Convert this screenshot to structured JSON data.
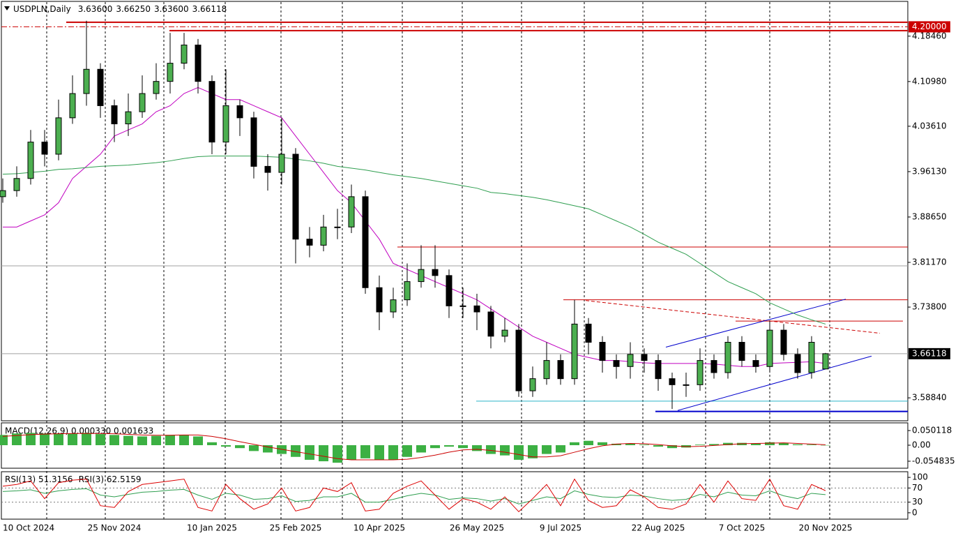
{
  "chart_data": {
    "type": "candlestick",
    "title": "USDPLN,Daily",
    "header_values": [
      {
        "value": 3.636,
        "label": "3.63600"
      },
      {
        "value": 3.6625,
        "label": "3.66250"
      },
      {
        "value": 3.636,
        "label": "3.63600"
      },
      {
        "value": 3.66118,
        "label": "3.66118"
      }
    ],
    "categories": [
      "10 Oct 2024",
      null,
      null,
      null,
      null,
      null,
      null,
      null,
      "25 Nov 2024",
      null,
      null,
      null,
      null,
      null,
      null,
      "10 Jan 2025",
      null,
      null,
      null,
      null,
      null,
      "25 Feb 2025",
      null,
      null,
      null,
      null,
      null,
      "10 Apr 2025",
      null,
      null,
      null,
      null,
      null,
      null,
      "26 May 2025",
      null,
      null,
      null,
      null,
      null,
      "9 Jul 2025",
      null,
      null,
      null,
      null,
      null,
      null,
      "22 Aug 2025",
      null,
      null,
      null,
      null,
      null,
      "7 Oct 2025",
      null,
      null,
      null,
      null,
      null,
      "20 Nov 2025"
    ],
    "open": [
      3.92,
      3.93,
      3.95,
      4.01,
      3.99,
      4.05,
      4.09,
      4.13,
      4.07,
      4.04,
      4.06,
      4.09,
      4.11,
      4.14,
      4.17,
      4.11,
      4.01,
      4.07,
      4.05,
      3.97,
      3.96,
      3.99,
      3.85,
      3.84,
      3.87,
      3.87,
      3.92,
      3.77,
      3.73,
      3.75,
      3.78,
      3.8,
      3.79,
      3.74,
      3.74,
      3.73,
      3.69,
      3.7,
      3.6,
      3.62,
      3.65,
      3.62,
      3.71,
      3.68,
      3.65,
      3.64,
      3.66,
      3.65,
      3.62,
      3.61,
      3.61,
      3.65,
      3.63,
      3.68,
      3.65,
      3.64,
      3.7,
      3.66,
      3.63,
      3.636
    ],
    "high": [
      3.95,
      3.97,
      4.03,
      4.03,
      4.08,
      4.12,
      4.21,
      4.14,
      4.08,
      4.09,
      4.12,
      4.14,
      4.19,
      4.19,
      4.18,
      4.12,
      4.13,
      4.08,
      4.06,
      3.99,
      4.05,
      4.0,
      3.87,
      3.89,
      3.9,
      3.94,
      3.93,
      3.79,
      3.77,
      3.81,
      3.84,
      3.84,
      3.8,
      3.77,
      3.76,
      3.74,
      3.72,
      3.71,
      3.64,
      3.68,
      3.66,
      3.75,
      3.72,
      3.69,
      3.66,
      3.68,
      3.67,
      3.66,
      3.63,
      3.63,
      3.67,
      3.66,
      3.69,
      3.69,
      3.66,
      3.715,
      3.71,
      3.67,
      3.69,
      3.6625
    ],
    "low": [
      3.91,
      3.92,
      3.94,
      3.97,
      3.98,
      4.04,
      4.07,
      4.05,
      4.01,
      4.02,
      4.05,
      4.08,
      4.09,
      4.13,
      4.09,
      3.99,
      3.99,
      4.02,
      3.95,
      3.93,
      3.94,
      3.81,
      3.82,
      3.83,
      3.85,
      3.86,
      3.76,
      3.7,
      3.72,
      3.74,
      3.77,
      3.77,
      3.72,
      3.72,
      3.7,
      3.67,
      3.68,
      3.59,
      3.59,
      3.61,
      3.61,
      3.61,
      3.66,
      3.63,
      3.62,
      3.62,
      3.63,
      3.6,
      3.57,
      3.59,
      3.6,
      3.62,
      3.62,
      3.64,
      3.63,
      3.63,
      3.65,
      3.62,
      3.62,
      3.636
    ],
    "close": [
      3.93,
      3.95,
      4.01,
      3.99,
      4.05,
      4.09,
      4.13,
      4.07,
      4.04,
      4.06,
      4.09,
      4.11,
      4.14,
      4.17,
      4.11,
      4.01,
      4.07,
      4.05,
      3.97,
      3.96,
      3.99,
      3.85,
      3.84,
      3.87,
      3.87,
      3.92,
      3.77,
      3.73,
      3.75,
      3.78,
      3.8,
      3.79,
      3.74,
      3.74,
      3.73,
      3.69,
      3.7,
      3.6,
      3.62,
      3.65,
      3.62,
      3.71,
      3.68,
      3.65,
      3.64,
      3.66,
      3.65,
      3.62,
      3.61,
      3.61,
      3.65,
      3.63,
      3.68,
      3.65,
      3.64,
      3.7,
      3.66,
      3.63,
      3.68,
      3.66118
    ],
    "up_color": "#4caf50",
    "down_color": "#000000",
    "overlays": [
      {
        "color": "#c000c0",
        "values": [
          3.87,
          3.87,
          3.88,
          3.89,
          3.91,
          3.95,
          3.97,
          3.99,
          4.02,
          4.03,
          4.04,
          4.06,
          4.07,
          4.09,
          4.1,
          4.09,
          4.08,
          4.08,
          4.07,
          4.06,
          4.05,
          4.02,
          3.99,
          3.96,
          3.93,
          3.91,
          3.88,
          3.85,
          3.81,
          3.8,
          3.79,
          3.78,
          3.77,
          3.76,
          3.75,
          3.735,
          3.72,
          3.705,
          3.69,
          3.68,
          3.67,
          3.66,
          3.655,
          3.65,
          3.65,
          3.648,
          3.646,
          3.645,
          3.645,
          3.645,
          3.645,
          3.644,
          3.642,
          3.64,
          3.64,
          3.645,
          3.646,
          3.647,
          3.648,
          3.645
        ]
      },
      {
        "color": "#2e9e4f",
        "values": [
          3.957,
          3.958,
          3.96,
          3.962,
          3.965,
          3.966,
          3.968,
          3.97,
          3.971,
          3.972,
          3.974,
          3.976,
          3.979,
          3.983,
          3.986,
          3.987,
          3.987,
          3.987,
          3.987,
          3.986,
          3.985,
          3.982,
          3.979,
          3.975,
          3.97,
          3.967,
          3.964,
          3.96,
          3.956,
          3.953,
          3.95,
          3.946,
          3.942,
          3.938,
          3.934,
          3.927,
          3.925,
          3.922,
          3.919,
          3.915,
          3.91,
          3.905,
          3.9,
          3.89,
          3.88,
          3.87,
          3.858,
          3.845,
          3.835,
          3.825,
          3.81,
          3.795,
          3.78,
          3.77,
          3.76,
          3.745,
          3.735,
          3.725,
          3.717,
          3.71
        ]
      }
    ],
    "ylim": [
      3.5506,
      4.2419
    ],
    "yticks": [
      {
        "value": 4.1846,
        "label": "4.18460"
      },
      {
        "value": 4.1098,
        "label": "4.10980"
      },
      {
        "value": 4.0361,
        "label": "4.03610"
      },
      {
        "value": 3.9613,
        "label": "3.96130"
      },
      {
        "value": 3.8865,
        "label": "3.88650"
      },
      {
        "value": 3.8117,
        "label": "3.81170"
      },
      {
        "value": 3.738,
        "label": "3.73800"
      },
      {
        "value": 3.5884,
        "label": "3.58840"
      }
    ],
    "levels": [
      {
        "value": 4.2075,
        "color": "#cc0000",
        "style": "thick"
      },
      {
        "value": 4.1938,
        "color": "#cc0000",
        "style": "thick"
      },
      {
        "value": 4.2,
        "color": "#cc0000",
        "style": "dashdot"
      },
      {
        "value": 3.837,
        "color": "#cc0000",
        "style": "solid"
      },
      {
        "value": 3.75,
        "color": "#cc0000",
        "style": "solid"
      },
      {
        "value": 3.715,
        "color": "#cc0000",
        "style": "solid"
      },
      {
        "value": 3.583,
        "color": "#2bb5c9",
        "style": "solid"
      },
      {
        "value": 3.566,
        "color": "#0000cc",
        "style": "thick"
      },
      {
        "value": 3.806,
        "color": "#a0a0a0",
        "style": "solid"
      }
    ],
    "trendlines": [
      {
        "color": "#cc0000",
        "style": "dashed",
        "values": [
          3.7488,
          3.6949
        ]
      },
      {
        "color": "#0000cc",
        "style": "solid",
        "values": [
          3.672,
          3.7511
        ]
      },
      {
        "color": "#0000cc",
        "style": "solid",
        "values": [
          3.5676,
          3.6571
        ]
      }
    ],
    "current": {
      "value": 3.66118,
      "label": "3.66118",
      "color": "#000000"
    },
    "alert": {
      "value": 4.2,
      "label": "4.20000",
      "color": "#cc0000"
    },
    "indicators": [
      {
        "type": "macd",
        "label": "MACD(12,26,9) 0.000330 0.001633",
        "ylim": [
          -0.0788,
          0.0764
        ],
        "yticks": [
          0.050118,
          {
            "value": 0,
            "label": "0.00"
          },
          -0.054835
        ],
        "histogram": {
          "color": "#3cb043",
          "values": [
            0.035,
            0.04,
            0.042,
            0.04,
            0.04,
            0.04,
            0.042,
            0.038,
            0.035,
            0.032,
            0.03,
            0.032,
            0.035,
            0.035,
            0.03,
            0.01,
            -0.005,
            -0.01,
            -0.02,
            -0.025,
            -0.03,
            -0.04,
            -0.05,
            -0.055,
            -0.06,
            -0.05,
            -0.045,
            -0.05,
            -0.05,
            -0.04,
            -0.025,
            -0.01,
            -0.005,
            -0.01,
            -0.02,
            -0.03,
            -0.035,
            -0.05,
            -0.045,
            -0.03,
            -0.025,
            0.01,
            0.015,
            0.01,
            0.005,
            0.005,
            0.002,
            -0.005,
            -0.01,
            -0.008,
            0.002,
            0.004,
            0.008,
            0.008,
            0.006,
            0.01,
            0.008,
            0.003,
            0.002,
            0.00033
          ]
        },
        "signal": {
          "color": "#cc0000",
          "values": [
            0.03,
            0.033,
            0.036,
            0.038,
            0.039,
            0.04,
            0.04,
            0.04,
            0.039,
            0.037,
            0.035,
            0.034,
            0.034,
            0.035,
            0.035,
            0.03,
            0.022,
            0.012,
            0.003,
            -0.006,
            -0.014,
            -0.022,
            -0.03,
            -0.038,
            -0.046,
            -0.05,
            -0.05,
            -0.05,
            -0.05,
            -0.048,
            -0.042,
            -0.034,
            -0.024,
            -0.016,
            -0.014,
            -0.018,
            -0.024,
            -0.032,
            -0.04,
            -0.04,
            -0.036,
            -0.024,
            -0.012,
            -0.002,
            0.004,
            0.006,
            0.005,
            0.002,
            -0.002,
            -0.005,
            -0.004,
            -0.001,
            0.002,
            0.005,
            0.006,
            0.007,
            0.008,
            0.006,
            0.004,
            0.001633
          ]
        }
      },
      {
        "type": "rsi",
        "label": "RSI(13) 51.3156",
        "label2": "RSI(3) 62.5159",
        "ylim": [
          -18,
          116
        ],
        "yticks": [
          100,
          70,
          30,
          0
        ],
        "levels": [
          70,
          30
        ],
        "series": [
          {
            "color": "#2e9e4f",
            "values": [
              60,
              62,
              65,
              55,
              62,
              66,
              68,
              50,
              45,
              52,
              58,
              60,
              64,
              66,
              50,
              38,
              55,
              50,
              38,
              40,
              48,
              32,
              35,
              45,
              45,
              55,
              30,
              30,
              38,
              48,
              55,
              50,
              38,
              42,
              40,
              33,
              40,
              25,
              35,
              45,
              40,
              62,
              52,
              45,
              43,
              50,
              47,
              40,
              35,
              38,
              52,
              45,
              58,
              50,
              48,
              62,
              48,
              40,
              55,
              51.3156
            ]
          },
          {
            "color": "#dd0000",
            "values": [
              75,
              80,
              90,
              40,
              85,
              92,
              95,
              20,
              15,
              60,
              80,
              85,
              90,
              95,
              15,
              5,
              80,
              40,
              10,
              25,
              70,
              5,
              15,
              70,
              60,
              85,
              5,
              10,
              55,
              75,
              90,
              50,
              10,
              40,
              30,
              10,
              45,
              3,
              40,
              80,
              20,
              95,
              35,
              15,
              20,
              65,
              45,
              15,
              10,
              25,
              80,
              30,
              90,
              40,
              35,
              95,
              20,
              10,
              80,
              62.5159
            ]
          }
        ]
      }
    ]
  }
}
